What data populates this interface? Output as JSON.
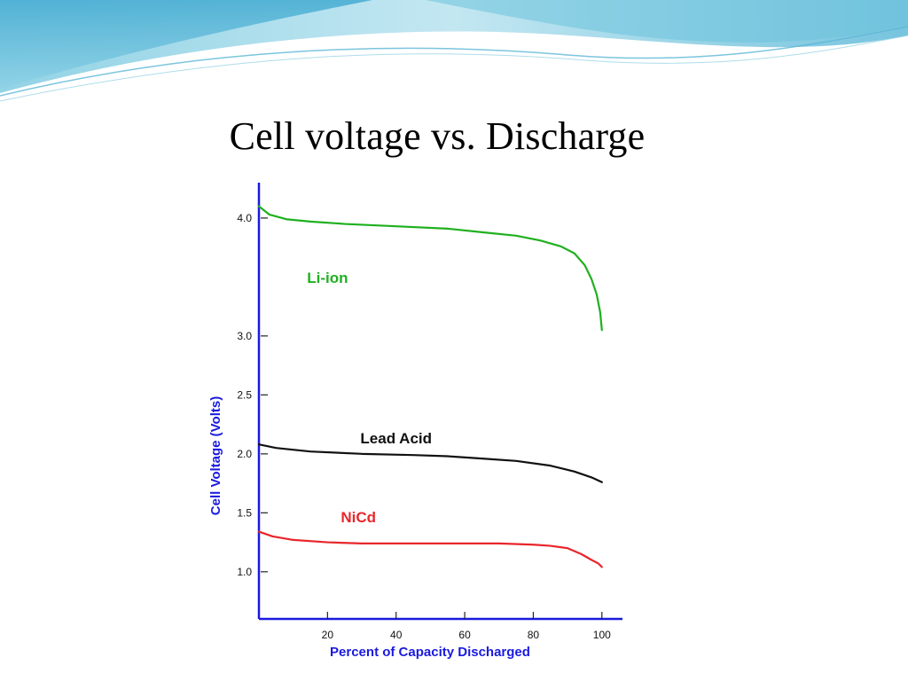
{
  "slide": {
    "title": "Cell voltage vs. Discharge"
  },
  "chart_data": {
    "type": "line",
    "title": "Cell voltage vs. Discharge",
    "xlabel": "Percent of Capacity Discharged",
    "ylabel": "Cell Voltage (Volts)",
    "x_ticks": [
      20,
      40,
      60,
      80,
      100
    ],
    "y_ticks": [
      {
        "label": "4.0",
        "pos": 4.0
      },
      {
        "label": "3.0",
        "pos": 3.0
      },
      {
        "label": "2.5",
        "pos": 2.5
      },
      {
        "label": "2.0",
        "pos": 2.0
      },
      {
        "label": "1.5",
        "pos": 1.5
      },
      {
        "label": "1.0",
        "pos": 1.0
      }
    ],
    "xlim": [
      0,
      106
    ],
    "ylim": [
      0.6,
      4.3
    ],
    "grid": false,
    "series": [
      {
        "name": "Li-ion",
        "color": "#1fb01f",
        "x": [
          0,
          3,
          8,
          15,
          25,
          40,
          55,
          65,
          75,
          82,
          88,
          92,
          95,
          97,
          98.5,
          99.5,
          100
        ],
        "y": [
          4.1,
          4.03,
          3.99,
          3.97,
          3.95,
          3.93,
          3.91,
          3.88,
          3.85,
          3.81,
          3.76,
          3.7,
          3.6,
          3.48,
          3.35,
          3.2,
          3.05
        ]
      },
      {
        "name": "Lead Acid",
        "color": "#111111",
        "x": [
          0,
          5,
          15,
          30,
          45,
          55,
          65,
          75,
          85,
          92,
          97,
          100
        ],
        "y": [
          2.08,
          2.05,
          2.02,
          2.0,
          1.99,
          1.98,
          1.96,
          1.94,
          1.9,
          1.85,
          1.8,
          1.76
        ]
      },
      {
        "name": "NiCd",
        "color": "#e8262b",
        "x": [
          0,
          4,
          10,
          20,
          30,
          40,
          50,
          60,
          70,
          80,
          85,
          90,
          94,
          97,
          99,
          100
        ],
        "y": [
          1.34,
          1.3,
          1.27,
          1.25,
          1.24,
          1.24,
          1.24,
          1.24,
          1.24,
          1.23,
          1.22,
          1.2,
          1.15,
          1.1,
          1.07,
          1.04
        ]
      }
    ]
  }
}
